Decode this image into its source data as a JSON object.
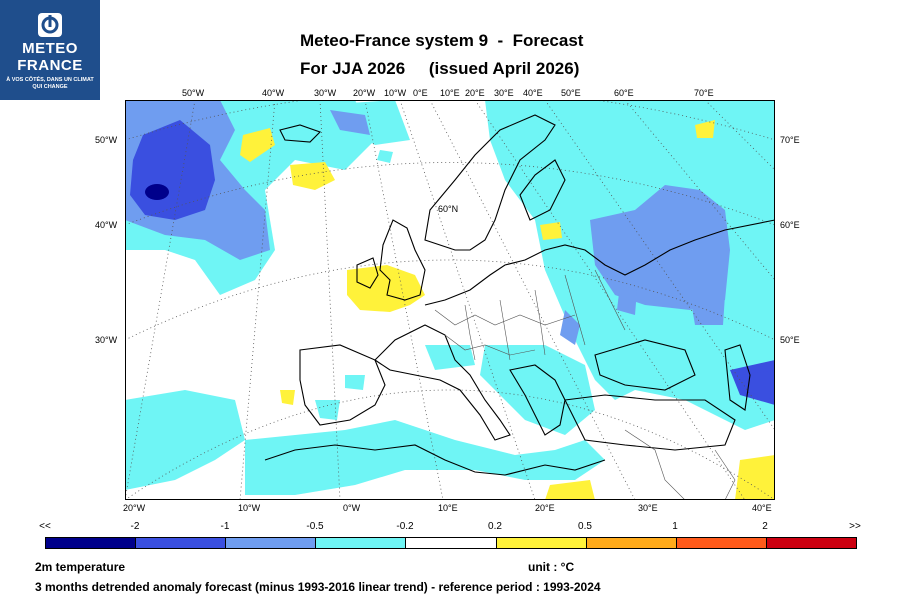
{
  "logo": {
    "line1": "METEO",
    "line2": "FRANCE",
    "tagline": "À VOS CÔTÉS, DANS UN CLIMAT QUI CHANGE",
    "color": "#1f4e8c"
  },
  "header": {
    "title_line1": "Meteo-France system 9  -  Forecast",
    "title_line2": "For JJA 2026     (issued April 2026)"
  },
  "map": {
    "top_lon_labels": [
      "50°W",
      "40°W",
      "30°W",
      "20°W",
      "10°W",
      "0°E",
      "10°E",
      "20°E",
      "30°E",
      "40°E",
      "50°E",
      "60°E",
      "70°E"
    ],
    "bottom_lon_labels": [
      "20°W",
      "10°W",
      "0°W",
      "10°E",
      "20°E",
      "30°E",
      "40°E"
    ],
    "left_lat_labels": [
      "50°W",
      "40°W",
      "30°W"
    ],
    "right_lat_labels": [
      "70°E",
      "60°E",
      "50°E"
    ],
    "inner_label": "60°N"
  },
  "colorbar": {
    "tick_labels": [
      "<<",
      "-2",
      "-1",
      "-0.5",
      "-0.2",
      "0.2",
      "0.5",
      "1",
      "2",
      ">>"
    ],
    "colors": [
      "#00008b",
      "#3a4fe0",
      "#6f9df0",
      "#6ff5f5",
      "#ffffff",
      "#fff23a",
      "#ffaa1a",
      "#ff5a1a",
      "#cc0010"
    ]
  },
  "footer": {
    "variable": "2m temperature",
    "unit": "unit : °C",
    "description": "3 months detrended anomaly forecast (minus 1993-2016 linear trend) - reference period : 1993-2024"
  }
}
